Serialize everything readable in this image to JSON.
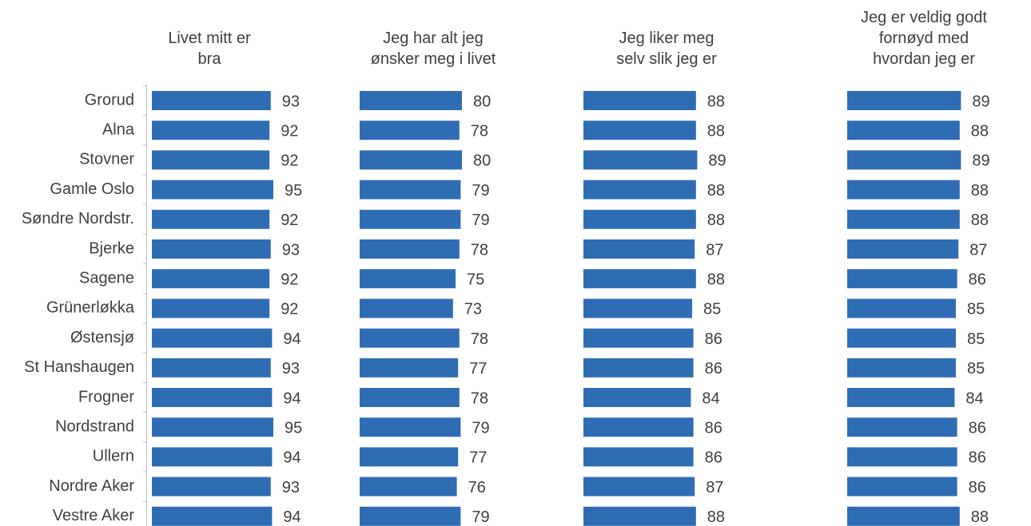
{
  "chart_data": {
    "type": "bar",
    "orientation": "horizontal",
    "colors": {
      "bar": "#2E6DB4",
      "text": "#404040",
      "axis": "#BFBFBF"
    },
    "categories": [
      "Grorud",
      "Alna",
      "Stovner",
      "Gamle Oslo",
      "Søndre Nordstr.",
      "Bjerke",
      "Sagene",
      "Grünerløkka",
      "Østensjø",
      "St Hanshaugen",
      "Frogner",
      "Nordstrand",
      "Ullern",
      "Nordre Aker",
      "Vestre Aker"
    ],
    "panels": [
      {
        "title": [
          "Livet mitt er",
          "bra"
        ],
        "values": [
          93,
          92,
          92,
          95,
          92,
          93,
          92,
          92,
          94,
          93,
          94,
          95,
          94,
          93,
          94
        ]
      },
      {
        "title": [
          "Jeg har alt jeg",
          "ønsker meg i livet"
        ],
        "values": [
          80,
          78,
          80,
          79,
          79,
          78,
          75,
          73,
          78,
          77,
          78,
          79,
          77,
          76,
          79
        ]
      },
      {
        "title": [
          "Jeg liker meg",
          "selv slik jeg er"
        ],
        "values": [
          88,
          88,
          89,
          88,
          88,
          87,
          88,
          85,
          86,
          86,
          84,
          86,
          86,
          87,
          88
        ]
      },
      {
        "title": [
          "Jeg er veldig godt",
          "fornøyd med",
          "hvordan jeg er"
        ],
        "values": [
          89,
          88,
          89,
          88,
          88,
          87,
          86,
          85,
          85,
          85,
          84,
          86,
          86,
          86,
          88
        ]
      }
    ]
  }
}
